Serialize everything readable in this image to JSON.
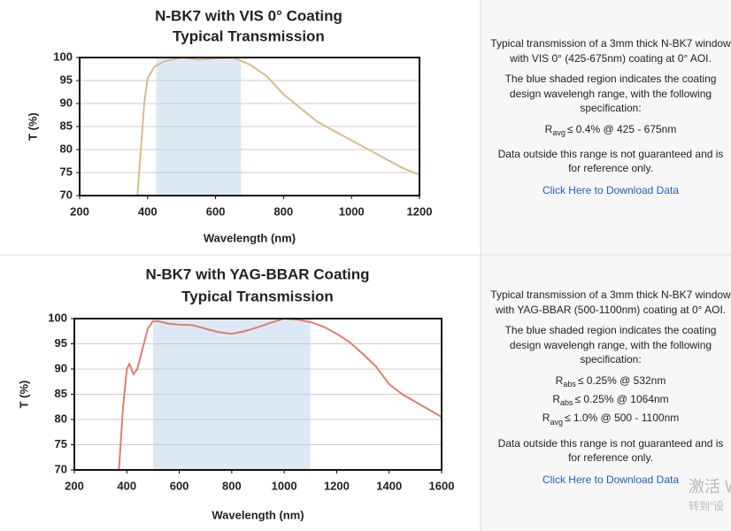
{
  "chart_data": [
    {
      "type": "line",
      "title": "N-BK7 with VIS 0° Coating",
      "subtitle": "Typical Transmission",
      "x_label": "Wavelength (nm)",
      "y_label": "T (%)",
      "x": [
        370,
        380,
        390,
        400,
        420,
        450,
        500,
        550,
        600,
        650,
        700,
        750,
        800,
        850,
        900,
        950,
        1000,
        1050,
        1100,
        1150,
        1200
      ],
      "values": [
        70,
        80,
        90,
        95.5,
        98,
        99.2,
        100,
        99.5,
        99.8,
        100,
        98.5,
        96,
        92,
        89,
        86,
        84,
        82,
        80,
        78,
        76,
        74.5
      ],
      "color": "#d9bb8c",
      "shaded_range": [
        425,
        675
      ],
      "shade_color": "#dce9f5",
      "xlim": [
        200,
        1200
      ],
      "xticks": [
        200,
        400,
        600,
        800,
        1000,
        1200
      ],
      "ylim": [
        70,
        100
      ],
      "yticks": [
        70,
        75,
        80,
        85,
        90,
        95,
        100
      ],
      "grid": true
    },
    {
      "type": "line",
      "title": "N-BK7 with YAG-BBAR Coating",
      "subtitle": "Typical Transmission",
      "x_label": "Wavelength (nm)",
      "y_label": "T (%)",
      "x": [
        370,
        385,
        400,
        410,
        425,
        440,
        460,
        480,
        500,
        520,
        560,
        600,
        650,
        700,
        750,
        800,
        850,
        900,
        950,
        1000,
        1050,
        1100,
        1150,
        1200,
        1250,
        1300,
        1350,
        1400,
        1450,
        1500,
        1550,
        1600
      ],
      "values": [
        70,
        82,
        90,
        91,
        89,
        90,
        94,
        98,
        99.5,
        99.5,
        99,
        98.8,
        98.7,
        98,
        97.3,
        97,
        97.5,
        98.3,
        99.2,
        100,
        99.8,
        99.3,
        98.4,
        97,
        95.3,
        93,
        90.5,
        87,
        85,
        83.5,
        82,
        80.5
      ],
      "color": "#e07e6c",
      "shaded_range": [
        500,
        1100
      ],
      "shade_color": "#dce9f5",
      "xlim": [
        200,
        1600
      ],
      "xticks": [
        200,
        400,
        600,
        800,
        1000,
        1200,
        1400,
        1600
      ],
      "ylim": [
        70,
        100
      ],
      "yticks": [
        70,
        75,
        80,
        85,
        90,
        95,
        100
      ],
      "grid": true
    }
  ],
  "panels": [
    {
      "paragraphs": [
        "Typical transmission of a 3mm thick N-BK7 window with VIS 0° (425-675nm) coating at 0° AOI.",
        "The blue shaded region indicates the coating design wavelengh range, with the following specification:"
      ],
      "specs": [
        {
          "symbol": "R",
          "sub": "avg",
          "text": "≤ 0.4% @ 425 - 675nm"
        }
      ],
      "note": "Data outside this range is not guaranteed and is for reference only.",
      "link": "Click Here to Download Data"
    },
    {
      "paragraphs": [
        "Typical transmission of a 3mm thick N-BK7 window with YAG-BBAR (500-1100nm) coating at 0° AOI.",
        "The blue shaded region indicates the coating design wavelengh range, with the following specification:"
      ],
      "specs": [
        {
          "symbol": "R",
          "sub": "abs",
          "text": "≤ 0.25% @ 532nm"
        },
        {
          "symbol": "R",
          "sub": "abs",
          "text": "≤ 0.25% @ 1064nm"
        },
        {
          "symbol": "R",
          "sub": "avg",
          "text": "≤ 1.0% @ 500 - 1100nm"
        }
      ],
      "note": "Data outside this range is not guaranteed and is for reference only.",
      "link": "Click Here to Download Data"
    }
  ],
  "watermark": [
    "激活 W",
    "转到“设"
  ]
}
